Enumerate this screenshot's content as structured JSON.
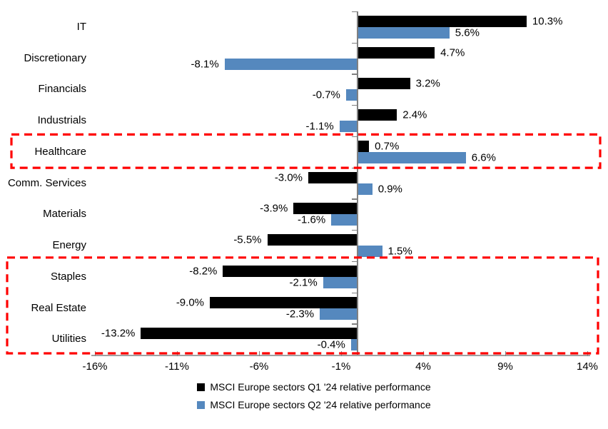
{
  "chart_data": {
    "type": "bar",
    "orientation": "horizontal",
    "title": "",
    "categories": [
      "IT",
      "Discretionary",
      "Financials",
      "Industrials",
      "Healthcare",
      "Comm. Services",
      "Materials",
      "Energy",
      "Staples",
      "Real Estate",
      "Utilities"
    ],
    "series": [
      {
        "name": "MSCI Europe sectors Q1 '24 relative performance",
        "color": "#000000",
        "values": [
          10.3,
          4.7,
          3.2,
          2.4,
          0.7,
          -3.0,
          -3.9,
          -5.5,
          -8.2,
          -9.0,
          -13.2
        ],
        "labels": [
          "10.3%",
          "4.7%",
          "3.2%",
          "2.4%",
          "0.7%",
          "-3.0%",
          "-3.9%",
          "-5.5%",
          "-8.2%",
          "-9.0%",
          "-13.2%"
        ]
      },
      {
        "name": "MSCI Europe sectors Q2 '24 relative performance",
        "color": "#5588BE",
        "values": [
          5.6,
          -8.1,
          -0.7,
          -1.1,
          6.6,
          0.9,
          -1.6,
          1.5,
          -2.1,
          -2.3,
          -0.4
        ],
        "labels": [
          "5.6%",
          "-8.1%",
          "-0.7%",
          "-1.1%",
          "6.6%",
          "0.9%",
          "-1.6%",
          "1.5%",
          "-2.1%",
          "-2.3%",
          "-0.4%"
        ]
      }
    ],
    "xlim": [
      -16,
      14
    ],
    "x_ticks": [
      -16,
      -11,
      -6,
      -1,
      4,
      9,
      14
    ],
    "x_tick_labels": [
      "-16%",
      "-11%",
      "-6%",
      "-1%",
      "4%",
      "9%",
      "14%"
    ],
    "grid": false,
    "legend_position": "bottom",
    "axis_color": "#808080",
    "highlight_color": "#FF0000",
    "highlights": [
      {
        "sectors": [
          "Healthcare"
        ],
        "row_start": 4,
        "row_end": 4
      },
      {
        "sectors": [
          "Staples",
          "Real Estate",
          "Utilities"
        ],
        "row_start": 8,
        "row_end": 10
      }
    ]
  }
}
